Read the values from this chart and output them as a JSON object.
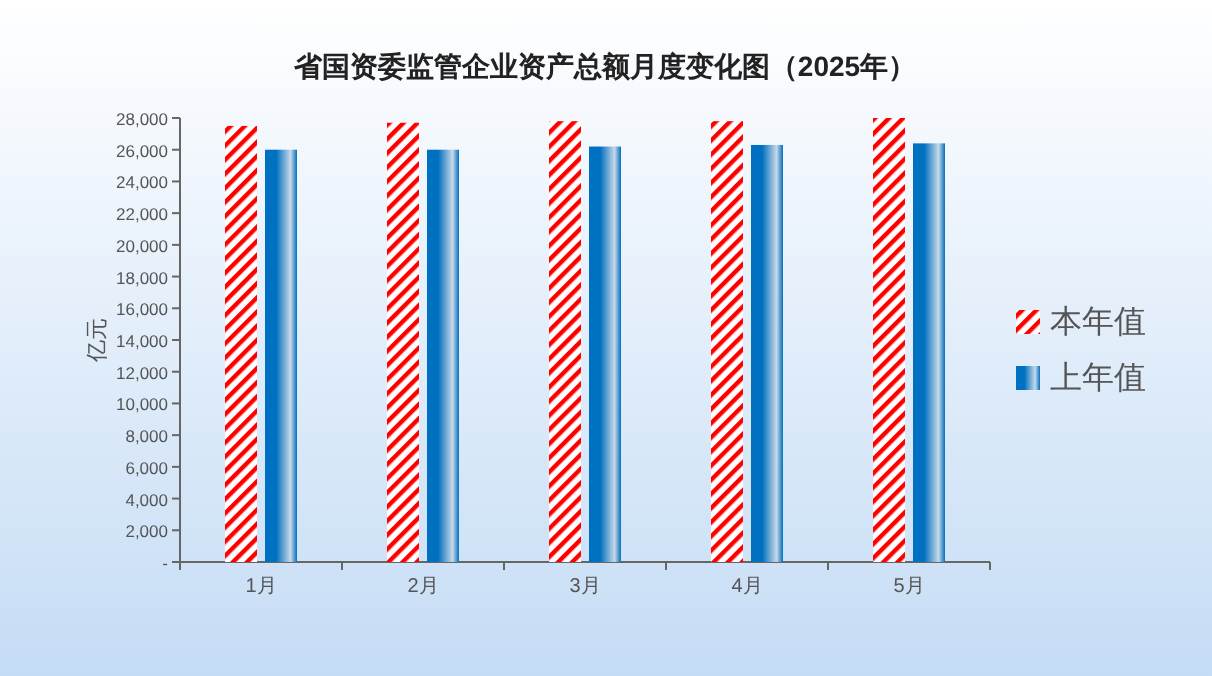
{
  "chart_data": {
    "type": "bar",
    "title": "省国资委监管企业资产总额月度变化图（2025年）",
    "ylabel": "亿元",
    "categories": [
      "1月",
      "2月",
      "3月",
      "4月",
      "5月"
    ],
    "series": [
      {
        "name": "本年值",
        "color": "#ff0000",
        "values": [
          27500,
          27700,
          27800,
          27800,
          28000
        ]
      },
      {
        "name": "上年值",
        "color": "#0070c0",
        "values": [
          26000,
          26000,
          26200,
          26300,
          26400
        ]
      }
    ],
    "ylim": [
      0,
      28000
    ],
    "yticks": [
      {
        "value": 0,
        "label": "-"
      },
      {
        "value": 2000,
        "label": "2,000"
      },
      {
        "value": 4000,
        "label": "4,000"
      },
      {
        "value": 6000,
        "label": "6,000"
      },
      {
        "value": 8000,
        "label": "8,000"
      },
      {
        "value": 10000,
        "label": "10,000"
      },
      {
        "value": 12000,
        "label": "12,000"
      },
      {
        "value": 14000,
        "label": "14,000"
      },
      {
        "value": 16000,
        "label": "16,000"
      },
      {
        "value": 18000,
        "label": "18,000"
      },
      {
        "value": 20000,
        "label": "20,000"
      },
      {
        "value": 22000,
        "label": "22,000"
      },
      {
        "value": 24000,
        "label": "24,000"
      },
      {
        "value": 26000,
        "label": "26,000"
      },
      {
        "value": 28000,
        "label": "28,000"
      }
    ],
    "grid": false,
    "legend": "right"
  }
}
